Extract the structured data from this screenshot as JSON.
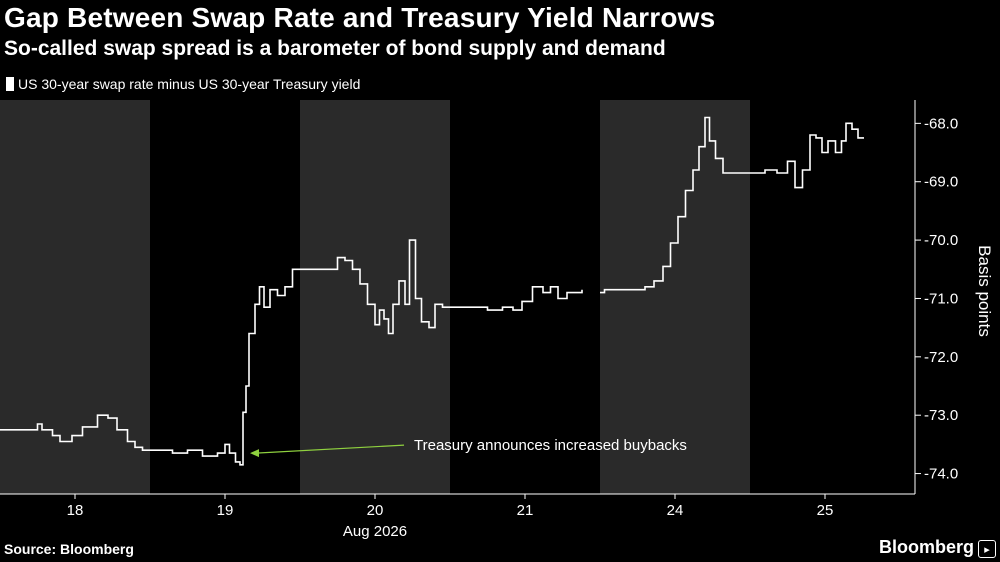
{
  "header": {
    "title": "Gap Between Swap Rate and Treasury Yield Narrows",
    "subtitle": "So-called swap spread is a barometer of bond supply and demand"
  },
  "footer": {
    "source": "Source: Bloomberg",
    "brand": "Bloomberg"
  },
  "chart_data": {
    "type": "line",
    "series": [
      {
        "name": "US 30-year swap rate minus US 30-year Treasury yield",
        "color": "#ffffff",
        "segments": [
          [
            [
              0.0,
              -73.25
            ],
            [
              0.2,
              -73.25
            ],
            [
              0.25,
              -73.15
            ],
            [
              0.28,
              -73.25
            ],
            [
              0.35,
              -73.35
            ],
            [
              0.4,
              -73.45
            ],
            [
              0.48,
              -73.35
            ],
            [
              0.55,
              -73.2
            ],
            [
              0.65,
              -73.0
            ],
            [
              0.72,
              -73.05
            ],
            [
              0.78,
              -73.25
            ],
            [
              0.85,
              -73.45
            ],
            [
              0.9,
              -73.55
            ],
            [
              0.95,
              -73.6
            ],
            [
              1.05,
              -73.6
            ],
            [
              1.15,
              -73.65
            ],
            [
              1.25,
              -73.6
            ],
            [
              1.35,
              -73.7
            ],
            [
              1.45,
              -73.65
            ],
            [
              1.5,
              -73.5
            ],
            [
              1.53,
              -73.65
            ],
            [
              1.57,
              -73.8
            ],
            [
              1.6,
              -73.85
            ],
            [
              1.62,
              -72.95
            ],
            [
              1.64,
              -72.5
            ],
            [
              1.66,
              -71.6
            ],
            [
              1.7,
              -71.1
            ],
            [
              1.73,
              -70.8
            ],
            [
              1.76,
              -71.15
            ],
            [
              1.8,
              -70.85
            ],
            [
              1.85,
              -70.95
            ],
            [
              1.9,
              -70.8
            ],
            [
              1.95,
              -70.5
            ],
            [
              2.05,
              -70.5
            ],
            [
              2.15,
              -70.5
            ],
            [
              2.25,
              -70.3
            ],
            [
              2.3,
              -70.35
            ],
            [
              2.35,
              -70.5
            ],
            [
              2.4,
              -70.75
            ],
            [
              2.45,
              -71.1
            ],
            [
              2.5,
              -71.45
            ],
            [
              2.53,
              -71.2
            ],
            [
              2.56,
              -71.35
            ],
            [
              2.59,
              -71.6
            ],
            [
              2.62,
              -71.1
            ],
            [
              2.66,
              -70.7
            ],
            [
              2.7,
              -71.1
            ],
            [
              2.73,
              -70.0
            ],
            [
              2.77,
              -71.0
            ],
            [
              2.81,
              -71.4
            ],
            [
              2.86,
              -71.5
            ],
            [
              2.9,
              -71.1
            ],
            [
              2.95,
              -71.15
            ],
            [
              3.05,
              -71.15
            ],
            [
              3.15,
              -71.15
            ],
            [
              3.25,
              -71.2
            ],
            [
              3.35,
              -71.15
            ],
            [
              3.42,
              -71.2
            ],
            [
              3.48,
              -71.05
            ],
            [
              3.55,
              -70.8
            ],
            [
              3.62,
              -70.9
            ],
            [
              3.67,
              -70.8
            ],
            [
              3.72,
              -71.0
            ],
            [
              3.78,
              -70.9
            ],
            [
              3.85,
              -70.9
            ],
            [
              3.88,
              -70.85
            ]
          ],
          [
            [
              4.0,
              -70.9
            ],
            [
              4.03,
              -70.85
            ],
            [
              4.1,
              -70.85
            ],
            [
              4.2,
              -70.85
            ],
            [
              4.3,
              -70.8
            ],
            [
              4.36,
              -70.7
            ],
            [
              4.42,
              -70.45
            ],
            [
              4.47,
              -70.05
            ],
            [
              4.52,
              -69.6
            ],
            [
              4.57,
              -69.15
            ],
            [
              4.62,
              -68.8
            ],
            [
              4.66,
              -68.4
            ],
            [
              4.7,
              -67.9
            ],
            [
              4.73,
              -68.3
            ],
            [
              4.77,
              -68.6
            ],
            [
              4.82,
              -68.85
            ],
            [
              4.9,
              -68.85
            ],
            [
              5.0,
              -68.85
            ],
            [
              5.1,
              -68.8
            ],
            [
              5.18,
              -68.85
            ],
            [
              5.25,
              -68.65
            ],
            [
              5.3,
              -69.1
            ],
            [
              5.35,
              -68.8
            ],
            [
              5.4,
              -68.2
            ],
            [
              5.44,
              -68.25
            ],
            [
              5.48,
              -68.5
            ],
            [
              5.52,
              -68.3
            ],
            [
              5.57,
              -68.5
            ],
            [
              5.61,
              -68.3
            ],
            [
              5.64,
              -68.0
            ],
            [
              5.68,
              -68.1
            ],
            [
              5.72,
              -68.25
            ],
            [
              5.76,
              -68.25
            ]
          ]
        ]
      }
    ],
    "xlabel": "Aug 2026",
    "ylabel": "Basis points",
    "x_ticks": [
      {
        "pos": 0.5,
        "label": "18"
      },
      {
        "pos": 1.5,
        "label": "19"
      },
      {
        "pos": 2.5,
        "label": "20"
      },
      {
        "pos": 3.5,
        "label": "21"
      },
      {
        "pos": 4.5,
        "label": "24"
      },
      {
        "pos": 5.5,
        "label": "25"
      }
    ],
    "y_ticks": [
      -68.0,
      -69.0,
      -70.0,
      -71.0,
      -72.0,
      -73.0,
      -74.0
    ],
    "xlim": [
      0,
      6.1
    ],
    "ylim": [
      -74.35,
      -67.6
    ],
    "shaded_days": [
      [
        0,
        1
      ],
      [
        2,
        3
      ],
      [
        4,
        5
      ]
    ],
    "grid": false,
    "annotation": {
      "text": "Treasury announces increased buybacks",
      "arrow_color": "#8fd13f",
      "x": 1.64,
      "y": -73.65
    }
  }
}
